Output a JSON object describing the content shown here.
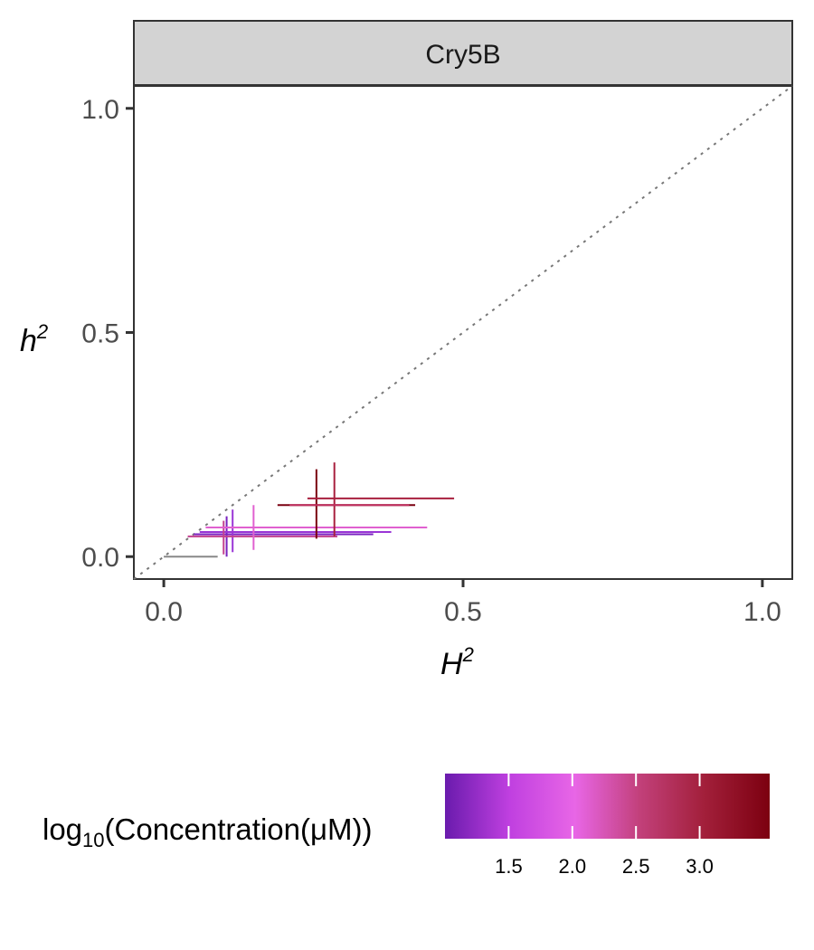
{
  "chart_data": {
    "type": "scatter",
    "panel_label": "Cry5B",
    "xlabel": "H",
    "xlabel_sup": "2",
    "ylabel": "h",
    "ylabel_sup": "2",
    "xlim": [
      -0.05,
      1.05
    ],
    "ylim": [
      -0.05,
      1.05
    ],
    "x_ticks": [
      0.0,
      0.5,
      1.0
    ],
    "x_tick_labels": [
      "0.0",
      "0.5",
      "1.0"
    ],
    "y_ticks": [
      0.0,
      0.5,
      1.0
    ],
    "y_tick_labels": [
      "0.0",
      "0.5",
      "1.0"
    ],
    "reference_line": "y = x (dotted)",
    "grid": false,
    "points": [
      {
        "x": 0.045,
        "xmin": 0.0,
        "xmax": 0.09,
        "y": 0.0,
        "ymin": 0.0,
        "ymax": 0.0,
        "color": "#888888"
      },
      {
        "x": 0.105,
        "xmin": 0.05,
        "xmax": 0.35,
        "y": 0.05,
        "ymin": 0.0,
        "ymax": 0.09,
        "color": "#7a22c0"
      },
      {
        "x": 0.115,
        "xmin": 0.06,
        "xmax": 0.38,
        "y": 0.055,
        "ymin": 0.01,
        "ymax": 0.105,
        "color": "#9a35d6"
      },
      {
        "x": 0.1,
        "xmin": 0.04,
        "xmax": 0.29,
        "y": 0.045,
        "ymin": 0.005,
        "ymax": 0.08,
        "color": "#c2418e"
      },
      {
        "x": 0.15,
        "xmin": 0.07,
        "xmax": 0.44,
        "y": 0.065,
        "ymin": 0.015,
        "ymax": 0.115,
        "color": "#e060d0"
      },
      {
        "x": 0.255,
        "xmin": 0.19,
        "xmax": 0.42,
        "y": 0.115,
        "ymin": 0.04,
        "ymax": 0.195,
        "color": "#7a0010"
      },
      {
        "x": 0.285,
        "xmin": 0.24,
        "xmax": 0.485,
        "y": 0.13,
        "ymin": 0.045,
        "ymax": 0.21,
        "color": "#a8203e"
      },
      {
        "x": 0.27,
        "xmin": 0.21,
        "xmax": 0.41,
        "y": 0.115,
        "ymin": 0.115,
        "ymax": 0.115,
        "color": "#c03060"
      }
    ],
    "legend": {
      "placement": "bottom",
      "title_prefix": "log",
      "title_sub": "10",
      "title_rest": "(Concentration(μM))",
      "min": 1.0,
      "max": 3.55,
      "ticks": [
        1.5,
        2.0,
        2.5,
        3.0
      ],
      "tick_labels": [
        "1.5",
        "2.0",
        "2.5",
        "3.0"
      ],
      "gradient_colors": [
        "#6a1bad",
        "#c040e0",
        "#e866e6",
        "#c2407a",
        "#a21f3a",
        "#7c0010"
      ]
    }
  }
}
